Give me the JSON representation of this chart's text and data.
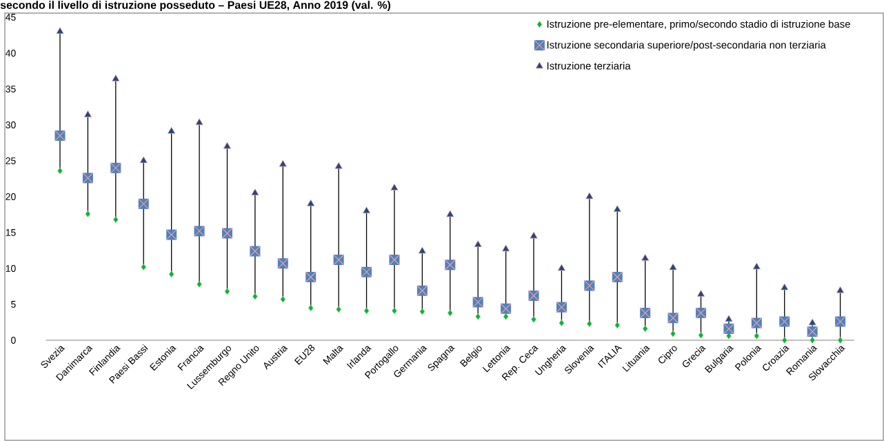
{
  "chart_data": {
    "type": "scatter",
    "title": "secondo il livello di istruzione posseduto – Paesi UE28, Anno 2019 (val. %)",
    "categories": [
      "Svezia",
      "Danimarca",
      "Finlandia",
      "Paesi Bassi",
      "Estonia",
      "Francia",
      "Lussemburgo",
      "Regno Unito",
      "Austria",
      "EU28",
      "Malta",
      "Irlanda",
      "Portogallo",
      "Germania",
      "Spagna",
      "Belgio",
      "Lettonia",
      "Rep. Ceca",
      "Ungheria",
      "Slovenia",
      "ITALIA",
      "Lituania",
      "Cipro",
      "Grecia",
      "Bulgaria",
      "Polonia",
      "Croazia",
      "Romania",
      "Slovacchia"
    ],
    "series": [
      {
        "name": "Istruzione pre-elementare, primo/secondo stadio di istruzione base",
        "color": "#00b050",
        "marker": "diamond",
        "values": [
          23.6,
          17.6,
          16.8,
          10.2,
          9.2,
          7.8,
          6.8,
          6.1,
          5.7,
          4.5,
          4.3,
          4.1,
          4.1,
          4.0,
          3.8,
          3.3,
          3.3,
          2.9,
          2.4,
          2.3,
          2.1,
          1.6,
          0.9,
          0.7,
          0.6,
          0.6,
          0.0,
          0.0,
          0.0
        ]
      },
      {
        "name": "Istruzione secondaria superiore/post-secondaria non terziaria",
        "color": "#4f81bd",
        "marker": "square",
        "values": [
          28.5,
          22.6,
          24.0,
          19.0,
          14.7,
          15.2,
          14.9,
          12.4,
          10.7,
          8.8,
          11.2,
          9.5,
          11.2,
          6.9,
          10.5,
          5.3,
          4.4,
          6.2,
          4.6,
          7.6,
          8.8,
          3.8,
          3.1,
          3.8,
          1.6,
          2.4,
          2.6,
          1.2,
          2.6
        ]
      },
      {
        "name": "Istruzione terziaria",
        "color": "#1f497d",
        "marker": "triangle",
        "values": [
          43.0,
          31.4,
          36.4,
          25.0,
          29.1,
          30.3,
          27.0,
          20.5,
          24.5,
          19.0,
          24.2,
          18.0,
          21.2,
          12.4,
          17.5,
          13.3,
          12.7,
          14.5,
          10.0,
          20.0,
          18.2,
          11.4,
          10.1,
          6.4,
          2.9,
          10.2,
          7.3,
          2.4,
          6.9
        ]
      }
    ],
    "ylim": [
      0,
      45
    ],
    "yticks": [
      0,
      5,
      10,
      15,
      20,
      25,
      30,
      35,
      40,
      45
    ],
    "grid": false,
    "legend": "top right"
  }
}
